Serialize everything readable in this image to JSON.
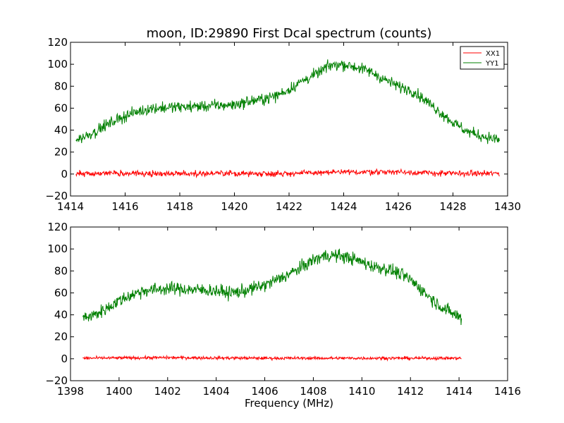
{
  "figure": {
    "title": "moon, ID:29890 First Dcal spectrum (counts)"
  },
  "chart_data": [
    {
      "type": "line",
      "title": "moon, ID:29890 First Dcal spectrum (counts)",
      "xlabel": "",
      "ylabel": "",
      "xlim": [
        1414,
        1430
      ],
      "ylim": [
        -20,
        120
      ],
      "xticks": [
        1414,
        1416,
        1418,
        1420,
        1422,
        1424,
        1426,
        1428,
        1430
      ],
      "yticks": [
        -20,
        0,
        20,
        40,
        60,
        80,
        100,
        120
      ],
      "legend": {
        "placement": "top-right",
        "entries": [
          "XX1",
          "YY1"
        ]
      },
      "grid": false,
      "series": [
        {
          "name": "XX1",
          "color": "#ff0000",
          "x_range": [
            1414.2,
            1429.7
          ],
          "noise": 1.3,
          "x": [
            1414.2,
            1416,
            1418,
            1420,
            1422,
            1423.5,
            1424,
            1425,
            1426,
            1427,
            1428,
            1429.7
          ],
          "y": [
            0.5,
            0.5,
            0.5,
            0.5,
            0.5,
            1.5,
            1.5,
            2,
            2,
            1,
            0.5,
            0.5
          ]
        },
        {
          "name": "YY1",
          "color": "#008000",
          "x_range": [
            1414.2,
            1429.7
          ],
          "noise": 2.6,
          "x": [
            1414.2,
            1414.5,
            1415,
            1415.5,
            1416,
            1416.5,
            1417,
            1418,
            1419,
            1420,
            1420.5,
            1421,
            1421.5,
            1422,
            1422.5,
            1423,
            1423.5,
            1424,
            1424.5,
            1425,
            1425.5,
            1426,
            1426.5,
            1427,
            1427.5,
            1428,
            1428.5,
            1429,
            1429.7
          ],
          "y": [
            31,
            34,
            40,
            47,
            53,
            57,
            60,
            61,
            62,
            63,
            66,
            68,
            71,
            77,
            85,
            91,
            99,
            100,
            97,
            93,
            86,
            80,
            76,
            67,
            57,
            47,
            39,
            35,
            31
          ]
        }
      ]
    },
    {
      "type": "line",
      "title": "",
      "xlabel": "Frequency (MHz)",
      "ylabel": "",
      "xlim": [
        1398,
        1416
      ],
      "ylim": [
        -20,
        120
      ],
      "xticks": [
        1398,
        1400,
        1402,
        1404,
        1406,
        1408,
        1410,
        1412,
        1414,
        1416
      ],
      "yticks": [
        -20,
        0,
        20,
        40,
        60,
        80,
        100,
        120
      ],
      "legend": null,
      "grid": false,
      "series": [
        {
          "name": "",
          "color": "#ff0000",
          "x_range": [
            1398.5,
            1414.1
          ],
          "noise": 0.7,
          "x": [
            1398.5,
            1402,
            1406,
            1410,
            1414.1
          ],
          "y": [
            0.5,
            1,
            0.5,
            0.5,
            0.5
          ]
        },
        {
          "name": "",
          "color": "#008000",
          "x_range": [
            1398.5,
            1414.1
          ],
          "noise": 3.0,
          "x": [
            1398.5,
            1399,
            1399.5,
            1400,
            1400.5,
            1401,
            1402,
            1403,
            1404,
            1404.5,
            1405,
            1405.5,
            1406,
            1406.5,
            1407,
            1407.5,
            1408,
            1408.5,
            1409,
            1409.5,
            1410,
            1410.5,
            1411,
            1411.5,
            1412,
            1412.5,
            1413,
            1413.5,
            1414.1
          ],
          "y": [
            37,
            40,
            46,
            53,
            58,
            62,
            64,
            63,
            62,
            60,
            61,
            64,
            67,
            72,
            77,
            83,
            90,
            94,
            94,
            92,
            88,
            84,
            82,
            78,
            72,
            62,
            52,
            44,
            37
          ]
        }
      ]
    }
  ]
}
